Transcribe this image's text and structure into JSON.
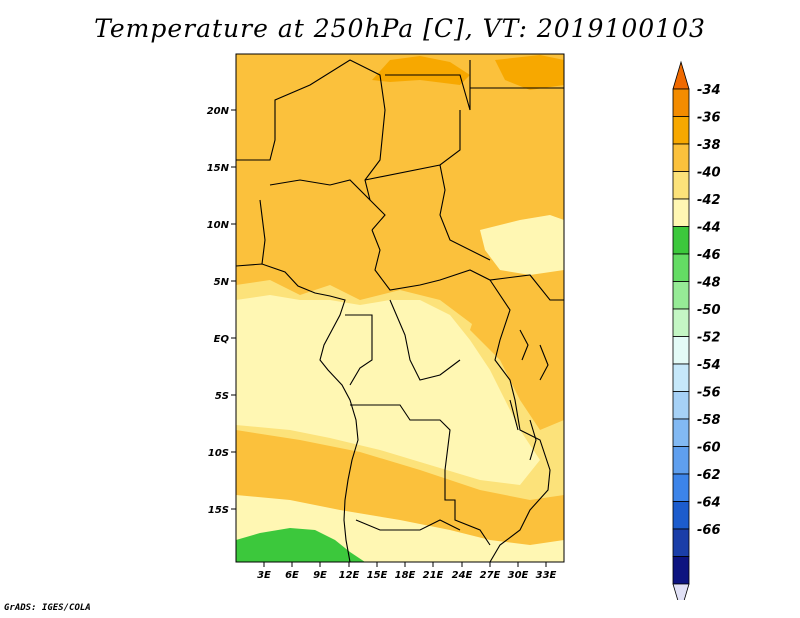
{
  "title": "Temperature at 250hPa [C], VT: 2019100103",
  "credit": "GrADS: IGES/COLA",
  "map": {
    "lat_labels": [
      "20N",
      "15N",
      "10N",
      "5N",
      "EQ",
      "5S",
      "10S",
      "15S"
    ],
    "lon_labels": [
      "3E",
      "6E",
      "9E",
      "12E",
      "15E",
      "18E",
      "21E",
      "24E",
      "27E",
      "30E",
      "33E"
    ]
  },
  "colorbar": {
    "levels": [
      "-34",
      "-36",
      "-38",
      "-40",
      "-42",
      "-44",
      "-46",
      "-48",
      "-50",
      "-52",
      "-54",
      "-56",
      "-58",
      "-60",
      "-62",
      "-64",
      "-66"
    ],
    "colors": [
      "#f06a00",
      "#f38c00",
      "#f7a800",
      "#fbc13c",
      "#fce27a",
      "#fff7b3",
      "#3cc83c",
      "#64dc64",
      "#96eb96",
      "#c4f6c4",
      "#e4fbf7",
      "#c6e8fa",
      "#a6d1f6",
      "#82b9f3",
      "#5f9fee",
      "#3c84e9",
      "#1c5ccd",
      "#1a3ea8",
      "#0d1480",
      "#e1e1f6"
    ]
  },
  "field_colors": {
    "c_36": "#f38c00",
    "c_38": "#f7a800",
    "c_40": "#fbc13c",
    "c_42": "#fce27a",
    "c_44": "#fff7b3",
    "c_46": "#3cc83c"
  }
}
